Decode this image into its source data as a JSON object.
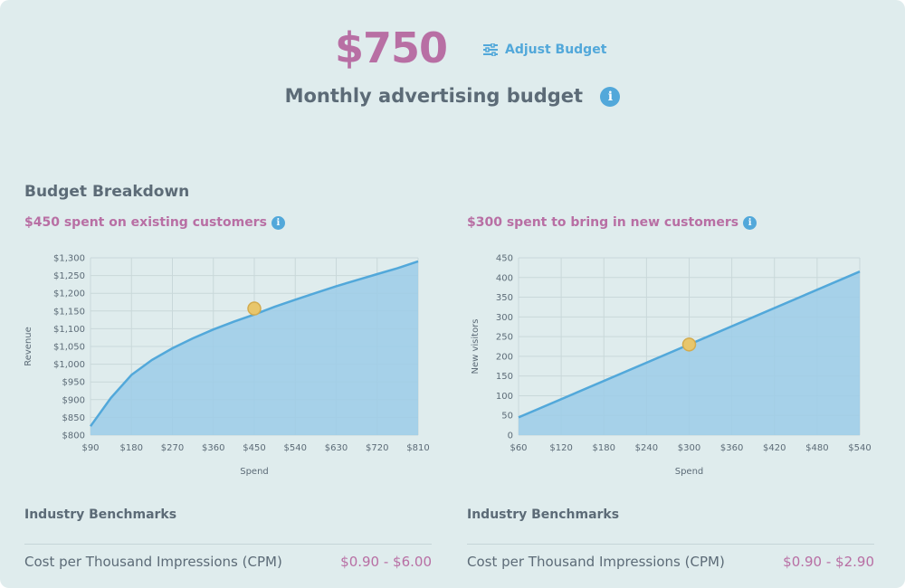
{
  "header": {
    "amount": "$750",
    "adjust_label": "Adjust Budget",
    "subtitle": "Monthly advertising budget"
  },
  "section_title": "Budget Breakdown",
  "left": {
    "title": "$450 spent on existing customers",
    "bench_title": "Industry Benchmarks",
    "metric_label": "Cost per Thousand Impressions (CPM)",
    "metric_value": "$0.90 - $6.00"
  },
  "right": {
    "title": "$300 spent to bring in new customers",
    "bench_title": "Industry Benchmarks",
    "metric_label": "Cost per Thousand Impressions (CPM)",
    "metric_value": "$0.90 - $2.90"
  },
  "colors": {
    "accent": "#b86fa4",
    "blue": "#52a8da",
    "area_fill": "#9ccde8",
    "marker": "#e8c66b"
  },
  "chart_data": [
    {
      "type": "area",
      "title": "",
      "xlabel": "Spend",
      "ylabel": "Revenue",
      "xlim": [
        90,
        810
      ],
      "ylim": [
        800,
        1300
      ],
      "x_ticks": [
        90,
        180,
        270,
        360,
        450,
        540,
        630,
        720,
        810
      ],
      "x_tick_labels": [
        "$90",
        "$180",
        "$270",
        "$360",
        "$450",
        "$540",
        "$630",
        "$720",
        "$810"
      ],
      "y_ticks": [
        800,
        850,
        900,
        950,
        1000,
        1050,
        1100,
        1150,
        1200,
        1250,
        1300
      ],
      "y_tick_labels": [
        "$800",
        "$850",
        "$900",
        "$950",
        "$1,000",
        "$1,050",
        "$1,100",
        "$1,150",
        "$1,200",
        "$1,250",
        "$1,300"
      ],
      "series": [
        {
          "x": [
            90,
            135,
            180,
            225,
            270,
            315,
            360,
            405,
            450,
            495,
            540,
            585,
            630,
            675,
            720,
            765,
            810
          ],
          "y": [
            825,
            905,
            970,
            1012,
            1045,
            1073,
            1098,
            1120,
            1140,
            1162,
            1182,
            1201,
            1220,
            1237,
            1254,
            1271,
            1290
          ]
        }
      ],
      "marker": {
        "x": 450,
        "y": 1157
      },
      "grid": true,
      "legend": "none"
    },
    {
      "type": "area",
      "title": "",
      "xlabel": "Spend",
      "ylabel": "New visitors",
      "xlim": [
        60,
        540
      ],
      "ylim": [
        0,
        450
      ],
      "x_ticks": [
        60,
        120,
        180,
        240,
        300,
        360,
        420,
        480,
        540
      ],
      "x_tick_labels": [
        "$60",
        "$120",
        "$180",
        "$240",
        "$300",
        "$360",
        "$420",
        "$480",
        "$540"
      ],
      "y_ticks": [
        0,
        50,
        100,
        150,
        200,
        250,
        300,
        350,
        400,
        450
      ],
      "y_tick_labels": [
        "0",
        "50",
        "100",
        "150",
        "200",
        "250",
        "300",
        "350",
        "400",
        "450"
      ],
      "series": [
        {
          "x": [
            60,
            540
          ],
          "y": [
            45,
            415
          ]
        }
      ],
      "marker": {
        "x": 300,
        "y": 230
      },
      "grid": true,
      "legend": "none"
    }
  ]
}
